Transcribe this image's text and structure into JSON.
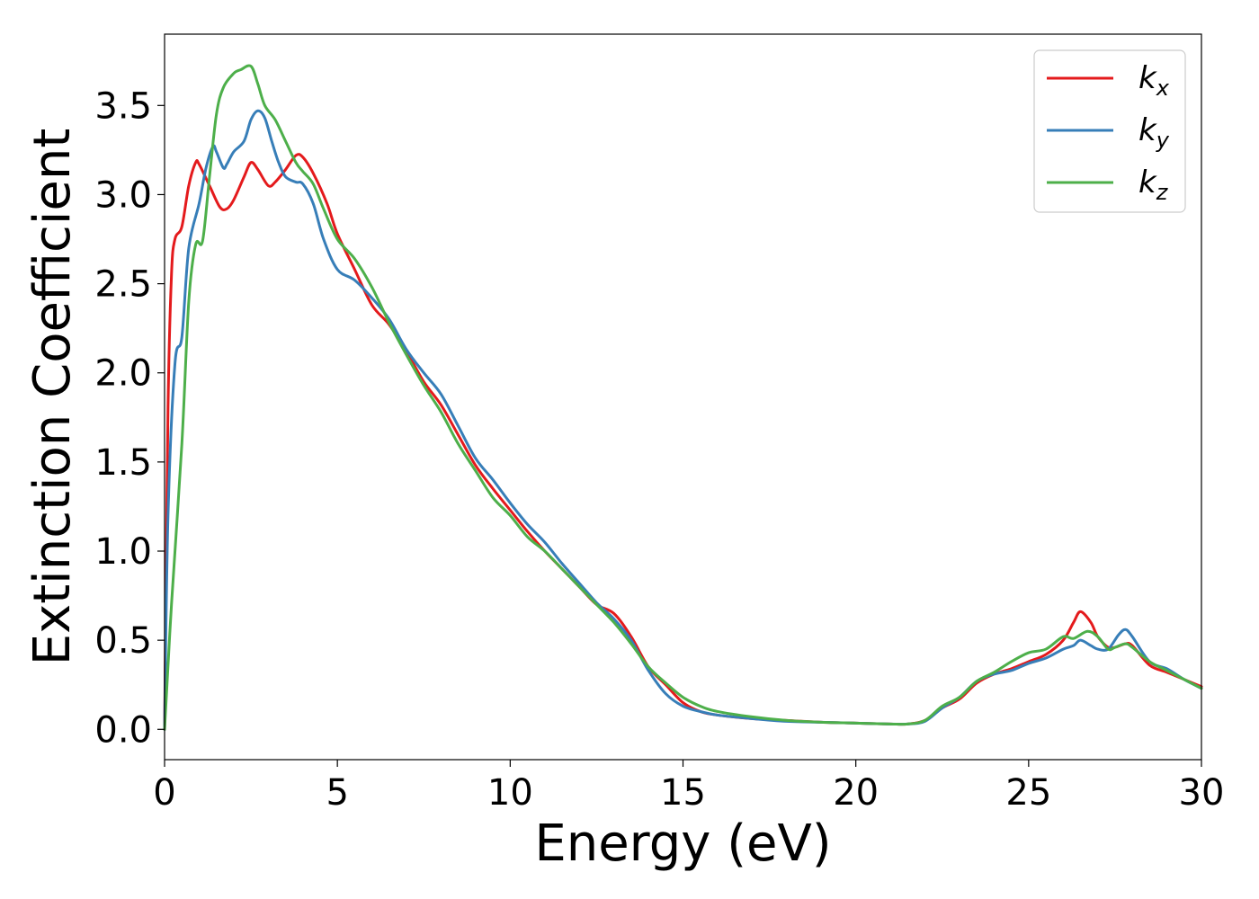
{
  "chart_data": {
    "type": "line",
    "xlabel": "Energy (eV)",
    "ylabel": "Extinction Coefficient",
    "xlim": [
      0,
      30
    ],
    "ylim": [
      -0.17,
      3.9
    ],
    "xticks": [
      0,
      5,
      10,
      15,
      20,
      25,
      30
    ],
    "xtick_labels": [
      "0",
      "5",
      "10",
      "15",
      "20",
      "25",
      "30"
    ],
    "yticks": [
      0,
      0.5,
      1,
      1.5,
      2,
      2.5,
      3,
      3.5
    ],
    "ytick_labels": [
      "0.0",
      "0.5",
      "1.0",
      "1.5",
      "2.0",
      "2.5",
      "3.0",
      "3.5"
    ],
    "grid": false,
    "legend_position": "top-right",
    "series": [
      {
        "name": "kx",
        "label_base": "k",
        "label_sub": "x",
        "color": "#e41a1c",
        "x": [
          0,
          0.1,
          0.2,
          0.3,
          0.5,
          0.7,
          0.9,
          1.0,
          1.3,
          1.6,
          1.8,
          2.0,
          2.3,
          2.5,
          2.7,
          3.0,
          3.2,
          3.5,
          3.8,
          4.0,
          4.3,
          4.7,
          5.0,
          5.5,
          6.0,
          6.5,
          7.0,
          7.5,
          8.0,
          8.5,
          9.0,
          9.5,
          10.0,
          10.5,
          11.0,
          11.5,
          12.0,
          12.5,
          13.0,
          13.5,
          14.0,
          14.5,
          15.0,
          15.5,
          16.0,
          17.0,
          18.0,
          19.0,
          20.0,
          21.0,
          21.5,
          22.0,
          22.5,
          23.0,
          23.5,
          24.0,
          24.5,
          25.0,
          25.5,
          26.0,
          26.3,
          26.5,
          26.8,
          27.0,
          27.3,
          27.5,
          27.8,
          28.0,
          28.5,
          29.0,
          29.5,
          30.0
        ],
        "y": [
          0.0,
          1.8,
          2.55,
          2.75,
          2.82,
          3.05,
          3.18,
          3.17,
          3.05,
          2.93,
          2.92,
          2.97,
          3.1,
          3.18,
          3.14,
          3.05,
          3.07,
          3.14,
          3.22,
          3.21,
          3.12,
          2.95,
          2.78,
          2.58,
          2.38,
          2.27,
          2.12,
          1.95,
          1.82,
          1.65,
          1.48,
          1.35,
          1.23,
          1.11,
          1.0,
          0.9,
          0.8,
          0.7,
          0.65,
          0.52,
          0.35,
          0.25,
          0.15,
          0.1,
          0.08,
          0.06,
          0.05,
          0.04,
          0.035,
          0.03,
          0.03,
          0.05,
          0.12,
          0.17,
          0.26,
          0.31,
          0.34,
          0.38,
          0.42,
          0.5,
          0.6,
          0.66,
          0.6,
          0.52,
          0.46,
          0.46,
          0.48,
          0.47,
          0.36,
          0.32,
          0.28,
          0.24
        ]
      },
      {
        "name": "ky",
        "label_base": "k",
        "label_sub": "y",
        "color": "#377eb8",
        "x": [
          0,
          0.1,
          0.3,
          0.5,
          0.7,
          1.0,
          1.2,
          1.4,
          1.5,
          1.7,
          1.8,
          2.0,
          2.3,
          2.5,
          2.7,
          2.9,
          3.1,
          3.3,
          3.5,
          3.8,
          4.0,
          4.3,
          4.6,
          5.0,
          5.5,
          6.0,
          6.5,
          7.0,
          7.5,
          8.0,
          8.5,
          9.0,
          9.5,
          10.0,
          10.5,
          11.0,
          11.5,
          12.0,
          12.5,
          13.0,
          13.5,
          14.0,
          14.5,
          15.0,
          15.5,
          16.0,
          17.0,
          18.0,
          19.0,
          20.0,
          21.0,
          21.5,
          22.0,
          22.5,
          23.0,
          23.5,
          24.0,
          24.5,
          25.0,
          25.5,
          26.0,
          26.3,
          26.5,
          26.8,
          27.0,
          27.3,
          27.6,
          27.8,
          28.0,
          28.5,
          29.0,
          29.5,
          30.0
        ],
        "y": [
          0.0,
          1.2,
          2.05,
          2.2,
          2.7,
          2.95,
          3.15,
          3.27,
          3.24,
          3.15,
          3.17,
          3.24,
          3.3,
          3.42,
          3.47,
          3.43,
          3.3,
          3.18,
          3.1,
          3.07,
          3.06,
          2.95,
          2.75,
          2.58,
          2.52,
          2.42,
          2.3,
          2.13,
          2.0,
          1.88,
          1.7,
          1.52,
          1.4,
          1.27,
          1.15,
          1.05,
          0.93,
          0.82,
          0.71,
          0.62,
          0.5,
          0.33,
          0.2,
          0.13,
          0.1,
          0.08,
          0.06,
          0.045,
          0.04,
          0.035,
          0.03,
          0.03,
          0.045,
          0.12,
          0.18,
          0.27,
          0.31,
          0.33,
          0.37,
          0.4,
          0.45,
          0.47,
          0.5,
          0.47,
          0.45,
          0.45,
          0.53,
          0.56,
          0.52,
          0.38,
          0.34,
          0.28,
          0.23
        ]
      },
      {
        "name": "kz",
        "label_base": "k",
        "label_sub": "z",
        "color": "#4daf4a",
        "x": [
          0,
          0.2,
          0.5,
          0.7,
          0.9,
          1.1,
          1.3,
          1.5,
          1.7,
          2.0,
          2.2,
          2.5,
          2.7,
          2.9,
          3.2,
          3.5,
          3.8,
          4.0,
          4.3,
          4.6,
          5.0,
          5.5,
          6.0,
          6.5,
          7.0,
          7.5,
          8.0,
          8.5,
          9.0,
          9.5,
          10.0,
          10.5,
          11.0,
          11.5,
          12.0,
          12.5,
          13.0,
          13.5,
          14.0,
          14.5,
          15.0,
          15.5,
          16.0,
          17.0,
          18.0,
          19.0,
          20.0,
          21.0,
          21.5,
          22.0,
          22.5,
          23.0,
          23.5,
          24.0,
          24.5,
          25.0,
          25.5,
          26.0,
          26.3,
          26.7,
          27.0,
          27.3,
          27.5,
          27.8,
          28.0,
          28.5,
          29.0,
          29.5,
          30.0
        ],
        "y": [
          0.0,
          0.7,
          1.6,
          2.4,
          2.72,
          2.74,
          3.1,
          3.45,
          3.6,
          3.68,
          3.7,
          3.72,
          3.62,
          3.5,
          3.42,
          3.3,
          3.18,
          3.13,
          3.06,
          2.92,
          2.75,
          2.64,
          2.48,
          2.28,
          2.1,
          1.93,
          1.78,
          1.6,
          1.45,
          1.3,
          1.2,
          1.08,
          1.0,
          0.9,
          0.8,
          0.7,
          0.6,
          0.48,
          0.35,
          0.26,
          0.18,
          0.13,
          0.1,
          0.07,
          0.05,
          0.04,
          0.035,
          0.03,
          0.03,
          0.05,
          0.13,
          0.18,
          0.27,
          0.32,
          0.38,
          0.43,
          0.45,
          0.52,
          0.51,
          0.55,
          0.52,
          0.45,
          0.46,
          0.48,
          0.46,
          0.38,
          0.33,
          0.28,
          0.23
        ]
      }
    ]
  }
}
